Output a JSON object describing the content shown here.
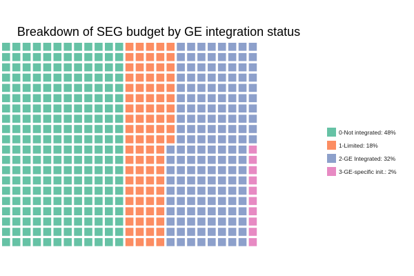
{
  "chart_data": {
    "type": "waffle",
    "title": "Breakdown of SEG budget by GE integration status",
    "xlabel": "",
    "ylabel": "",
    "grid": false,
    "legend_position": "right",
    "total_squares": 500,
    "categories": [
      "0-Not integrated",
      "1-Limited",
      "2-GE Integrated",
      "3-GE-specific init."
    ],
    "values": [
      48,
      18,
      32,
      2
    ],
    "squares": [
      240,
      90,
      160,
      10
    ],
    "colors": [
      "#66c2a5",
      "#fc8d62",
      "#8da0cb",
      "#e78ac3"
    ],
    "legend": [
      "0-Not integrated: 48%",
      "1-Limited: 18%",
      "2-GE Integrated: 32%",
      "3-GE-specific init.: 2%"
    ]
  }
}
